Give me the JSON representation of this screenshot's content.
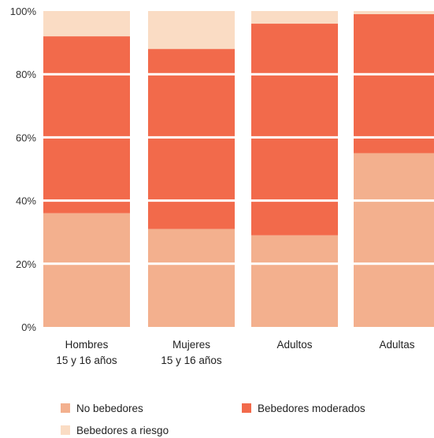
{
  "chart_data": {
    "type": "bar",
    "stacked": true,
    "categories": [
      [
        "Hombres",
        "15 y 16 años"
      ],
      [
        "Mujeres",
        "15 y 16 años"
      ],
      [
        "Adultos"
      ],
      [
        "Adultas"
      ]
    ],
    "series": [
      {
        "name": "No bebedores",
        "color": "#F3B08E",
        "values": [
          36,
          31,
          29,
          55
        ]
      },
      {
        "name": "Bebedores moderados",
        "color": "#F26A4B",
        "values": [
          56,
          57,
          67,
          44
        ]
      },
      {
        "name": "Bebedores a riesgo",
        "color": "#FADCC4",
        "values": [
          8,
          12,
          4,
          1
        ]
      }
    ],
    "ylim": [
      0,
      100
    ],
    "yticks": [
      "0%",
      "20%",
      "40%",
      "60%",
      "80%",
      "100%"
    ],
    "grid": true,
    "legend_position": "bottom"
  }
}
